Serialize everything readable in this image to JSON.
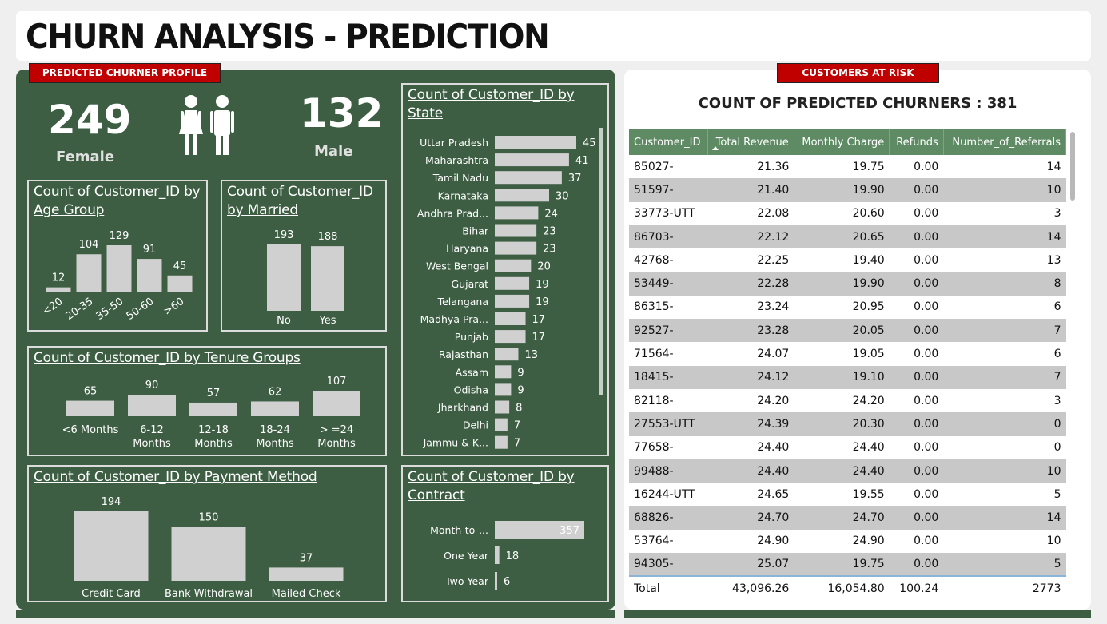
{
  "title": "CHURN ANALYSIS - PREDICTION",
  "tags": {
    "profile": "PREDICTED CHURNER PROFILE",
    "risk": "CUSTOMERS AT RISK"
  },
  "gender": {
    "female_count": "249",
    "female_label": "Female",
    "male_count": "132",
    "male_label": "Male",
    "icon": "female-male-icon"
  },
  "titles": {
    "age": "Count of Customer_ID by Age Group",
    "married": "Count of Customer_ID by Married",
    "tenure": "Count of Customer_ID by Tenure Groups",
    "payment": "Count of Customer_ID by Payment Method",
    "state": "Count of Customer_ID by State",
    "contract": "Count of Customer_ID by Contract"
  },
  "count_title": "COUNT OF PREDICTED CHURNERS : 381",
  "colors": {
    "panel": "#3d5e43",
    "bar": "#d0d0d0",
    "tag": "#c00000",
    "table_header": "#5e8b63"
  },
  "chart_data": [
    {
      "id": "age",
      "type": "bar",
      "categories": [
        "<20",
        "20-35",
        "35-50",
        "50-60",
        ">60"
      ],
      "values": [
        12,
        104,
        129,
        91,
        45
      ]
    },
    {
      "id": "married",
      "type": "bar",
      "categories": [
        "No",
        "Yes"
      ],
      "values": [
        193,
        188
      ]
    },
    {
      "id": "tenure",
      "type": "bar",
      "categories": [
        "<6 Months",
        "6-12 Months",
        "12-18 Months",
        "18-24 Months",
        ">=24 Months"
      ],
      "values": [
        65,
        90,
        57,
        62,
        107
      ]
    },
    {
      "id": "payment",
      "type": "bar",
      "categories": [
        "Credit Card",
        "Bank Withdrawal",
        "Mailed Check"
      ],
      "values": [
        194,
        150,
        37
      ]
    },
    {
      "id": "state",
      "type": "bar",
      "orientation": "horizontal",
      "categories": [
        "Uttar Pradesh",
        "Maharashtra",
        "Tamil Nadu",
        "Karnataka",
        "Andhra Prad...",
        "Bihar",
        "Haryana",
        "West Bengal",
        "Gujarat",
        "Telangana",
        "Madhya Pra...",
        "Punjab",
        "Rajasthan",
        "Assam",
        "Odisha",
        "Jharkhand",
        "Delhi",
        "Jammu & K..."
      ],
      "values": [
        45,
        41,
        37,
        30,
        24,
        23,
        23,
        20,
        19,
        19,
        17,
        17,
        13,
        9,
        9,
        8,
        7,
        7
      ]
    },
    {
      "id": "contract",
      "type": "bar",
      "orientation": "horizontal",
      "categories": [
        "Month-to-...",
        "One Year",
        "Two Year"
      ],
      "values": [
        357,
        18,
        6
      ]
    }
  ],
  "table": {
    "columns": [
      "Customer_ID",
      "Total Revenue",
      "Monthly Charge",
      "Refunds",
      "Number_of_Referrals"
    ],
    "rows": [
      [
        "85027-",
        "21.36",
        "19.75",
        "0.00",
        "14"
      ],
      [
        "51597-",
        "21.40",
        "19.90",
        "0.00",
        "10"
      ],
      [
        "33773-UTT",
        "22.08",
        "20.60",
        "0.00",
        "3"
      ],
      [
        "86703-",
        "22.12",
        "20.65",
        "0.00",
        "14"
      ],
      [
        "42768-",
        "22.25",
        "19.40",
        "0.00",
        "13"
      ],
      [
        "53449-",
        "22.28",
        "19.90",
        "0.00",
        "8"
      ],
      [
        "86315-",
        "23.24",
        "20.95",
        "0.00",
        "6"
      ],
      [
        "92527-",
        "23.28",
        "20.05",
        "0.00",
        "7"
      ],
      [
        "71564-",
        "24.07",
        "19.05",
        "0.00",
        "6"
      ],
      [
        "18415-",
        "24.12",
        "19.10",
        "0.00",
        "7"
      ],
      [
        "82118-",
        "24.20",
        "24.20",
        "0.00",
        "3"
      ],
      [
        "27553-UTT",
        "24.39",
        "20.30",
        "0.00",
        "0"
      ],
      [
        "77658-",
        "24.40",
        "24.40",
        "0.00",
        "0"
      ],
      [
        "99488-",
        "24.40",
        "24.40",
        "0.00",
        "10"
      ],
      [
        "16244-UTT",
        "24.65",
        "19.55",
        "0.00",
        "5"
      ],
      [
        "68826-",
        "24.70",
        "24.70",
        "0.00",
        "14"
      ],
      [
        "53764-",
        "24.90",
        "24.90",
        "0.00",
        "10"
      ],
      [
        "94305-",
        "25.07",
        "19.75",
        "0.00",
        "5"
      ]
    ],
    "total": [
      "Total",
      "43,096.26",
      "16,054.80",
      "100.24",
      "2773"
    ]
  }
}
